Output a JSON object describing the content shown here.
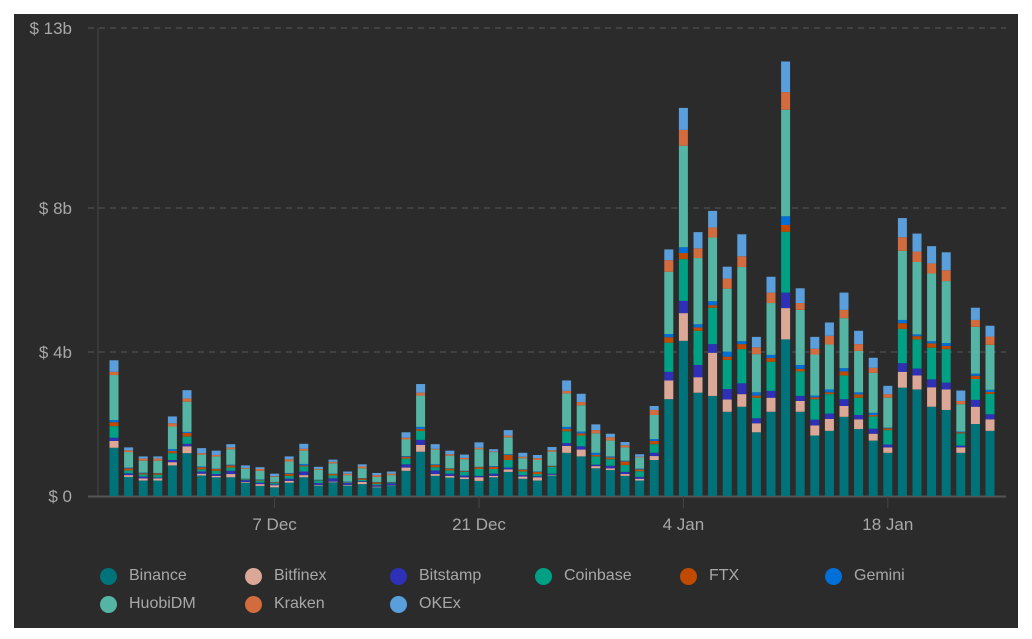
{
  "chart_data": {
    "type": "bar",
    "stacked": true,
    "title": "",
    "xlabel": "",
    "ylabel": "",
    "ylim": [
      0,
      13
    ],
    "grid": "horizontal dashed",
    "legend_position": "bottom",
    "background": "#2b2b2b",
    "y_ticks": [
      {
        "value": 0,
        "label": "$ 0"
      },
      {
        "value": 4,
        "label": "$ 4b"
      },
      {
        "value": 8,
        "label": "$ 8b"
      },
      {
        "value": 13,
        "label": "$ 13b"
      }
    ],
    "x_ticks": [
      {
        "date": "2020-12-07",
        "label": "7 Dec"
      },
      {
        "date": "2020-12-21",
        "label": "21 Dec"
      },
      {
        "date": "2021-01-04",
        "label": "4 Jan"
      },
      {
        "date": "2021-01-18",
        "label": "18 Jan"
      }
    ],
    "x": [
      "2020-11-26",
      "2020-11-27",
      "2020-11-28",
      "2020-11-29",
      "2020-11-30",
      "2020-12-01",
      "2020-12-02",
      "2020-12-03",
      "2020-12-04",
      "2020-12-05",
      "2020-12-06",
      "2020-12-07",
      "2020-12-08",
      "2020-12-09",
      "2020-12-10",
      "2020-12-11",
      "2020-12-12",
      "2020-12-13",
      "2020-12-14",
      "2020-12-15",
      "2020-12-16",
      "2020-12-17",
      "2020-12-18",
      "2020-12-19",
      "2020-12-20",
      "2020-12-21",
      "2020-12-22",
      "2020-12-23",
      "2020-12-24",
      "2020-12-25",
      "2020-12-26",
      "2020-12-27",
      "2020-12-28",
      "2020-12-29",
      "2020-12-30",
      "2020-12-31",
      "2021-01-01",
      "2021-01-02",
      "2021-01-03",
      "2021-01-04",
      "2021-01-05",
      "2021-01-06",
      "2021-01-07",
      "2021-01-08",
      "2021-01-09",
      "2021-01-10",
      "2021-01-11",
      "2021-01-12",
      "2021-01-13",
      "2021-01-14",
      "2021-01-15",
      "2021-01-16",
      "2021-01-17",
      "2021-01-18",
      "2021-01-19",
      "2021-01-20",
      "2021-01-21",
      "2021-01-22",
      "2021-01-23",
      "2021-01-24",
      "2021-01-25"
    ],
    "series": [
      {
        "name": "Binance",
        "color": "#00737a",
        "values": [
          1.34,
          0.53,
          0.43,
          0.43,
          0.85,
          1.19,
          0.57,
          0.52,
          0.52,
          0.37,
          0.28,
          0.24,
          0.37,
          0.52,
          0.29,
          0.38,
          0.29,
          0.33,
          0.24,
          0.29,
          0.7,
          1.23,
          0.56,
          0.51,
          0.47,
          0.42,
          0.52,
          0.67,
          0.48,
          0.43,
          0.57,
          1.2,
          1.1,
          0.77,
          0.72,
          0.56,
          0.43,
          1.0,
          2.69,
          4.31,
          2.87,
          2.78,
          2.34,
          2.48,
          1.77,
          2.34,
          4.35,
          2.34,
          1.68,
          1.81,
          2.2,
          1.86,
          1.54,
          1.2,
          3.01,
          2.96,
          2.48,
          2.39,
          1.2,
          2.0,
          1.81
        ]
      },
      {
        "name": "Bitfinex",
        "color": "#dba898",
        "values": [
          0.19,
          0.05,
          0.06,
          0.06,
          0.09,
          0.19,
          0.05,
          0.04,
          0.09,
          0.02,
          0.05,
          0.06,
          0.05,
          0.06,
          0.02,
          0.02,
          0.02,
          0.06,
          0.02,
          0.01,
          0.09,
          0.19,
          0.05,
          0.05,
          0.05,
          0.1,
          0.04,
          0.07,
          0.06,
          0.09,
          0.02,
          0.19,
          0.19,
          0.06,
          0.05,
          0.05,
          0.05,
          0.11,
          0.52,
          0.77,
          0.43,
          1.2,
          0.34,
          0.35,
          0.25,
          0.39,
          0.87,
          0.3,
          0.28,
          0.33,
          0.3,
          0.27,
          0.19,
          0.15,
          0.44,
          0.39,
          0.54,
          0.57,
          0.15,
          0.48,
          0.32
        ]
      },
      {
        "name": "Bitstamp",
        "color": "#2e31b8",
        "values": [
          0.09,
          0.05,
          0.05,
          0.02,
          0.06,
          0.07,
          0.06,
          0.05,
          0.09,
          0.05,
          0.04,
          0.02,
          0.06,
          0.1,
          0.05,
          0.09,
          0.05,
          0.02,
          0.04,
          0.05,
          0.09,
          0.14,
          0.1,
          0.06,
          0.05,
          0.04,
          0.06,
          0.05,
          0.04,
          0.03,
          0.03,
          0.08,
          0.09,
          0.04,
          0.07,
          0.06,
          0.05,
          0.09,
          0.24,
          0.34,
          0.34,
          0.24,
          0.29,
          0.3,
          0.14,
          0.19,
          0.43,
          0.14,
          0.16,
          0.15,
          0.19,
          0.12,
          0.14,
          0.08,
          0.24,
          0.19,
          0.22,
          0.19,
          0.05,
          0.19,
          0.14
        ]
      },
      {
        "name": "Coinbase",
        "color": "#00a085",
        "values": [
          0.32,
          0.08,
          0.06,
          0.08,
          0.19,
          0.2,
          0.06,
          0.09,
          0.09,
          0.02,
          0.06,
          0.04,
          0.08,
          0.14,
          0.07,
          0.08,
          0.02,
          0.04,
          0.04,
          0.02,
          0.16,
          0.25,
          0.09,
          0.09,
          0.1,
          0.19,
          0.13,
          0.21,
          0.1,
          0.06,
          0.19,
          0.33,
          0.3,
          0.23,
          0.18,
          0.19,
          0.16,
          0.24,
          0.81,
          1.16,
          0.95,
          1.01,
          0.81,
          0.95,
          0.57,
          0.81,
          1.69,
          0.68,
          0.57,
          0.54,
          0.66,
          0.48,
          0.34,
          0.4,
          0.95,
          0.81,
          0.88,
          0.93,
          0.34,
          0.58,
          0.57
        ]
      },
      {
        "name": "FTX",
        "color": "#c04a00",
        "values": [
          0.11,
          0.06,
          0.03,
          0.04,
          0.06,
          0.1,
          0.06,
          0.05,
          0.06,
          0.01,
          0.02,
          0.02,
          0.06,
          0.03,
          0.01,
          0.04,
          0.01,
          0.04,
          0.04,
          0.01,
          0.05,
          0.05,
          0.06,
          0.05,
          0.02,
          0.05,
          0.06,
          0.14,
          0.05,
          0.06,
          0.02,
          0.06,
          0.06,
          0.04,
          0.05,
          0.1,
          0.05,
          0.09,
          0.15,
          0.17,
          0.09,
          0.07,
          0.09,
          0.14,
          0.06,
          0.1,
          0.19,
          0.07,
          0.05,
          0.05,
          0.11,
          0.09,
          0.04,
          0.05,
          0.16,
          0.09,
          0.12,
          0.09,
          0.03,
          0.09,
          0.05
        ]
      },
      {
        "name": "Gemini",
        "color": "#0070d8",
        "values": [
          0.06,
          0.02,
          0.02,
          0.01,
          0.05,
          0.03,
          0.02,
          0.01,
          0.02,
          0.01,
          0.01,
          0.01,
          0.02,
          0.04,
          0.01,
          0.01,
          0.01,
          0.01,
          0.01,
          0.01,
          0.02,
          0.06,
          0.02,
          0.01,
          0.01,
          0.01,
          0.02,
          0.02,
          0.01,
          0.01,
          0.01,
          0.06,
          0.05,
          0.06,
          0.03,
          0.02,
          0.02,
          0.05,
          0.09,
          0.16,
          0.09,
          0.11,
          0.14,
          0.08,
          0.09,
          0.09,
          0.24,
          0.11,
          0.05,
          0.08,
          0.09,
          0.06,
          0.06,
          0.02,
          0.09,
          0.05,
          0.06,
          0.08,
          0.02,
          0.06,
          0.06
        ]
      },
      {
        "name": "HuobiDM",
        "color": "#55b5a5",
        "values": [
          1.25,
          0.43,
          0.33,
          0.34,
          0.63,
          0.84,
          0.33,
          0.34,
          0.43,
          0.28,
          0.24,
          0.14,
          0.32,
          0.37,
          0.28,
          0.29,
          0.18,
          0.27,
          0.14,
          0.19,
          0.46,
          0.87,
          0.41,
          0.35,
          0.32,
          0.49,
          0.39,
          0.47,
          0.31,
          0.32,
          0.39,
          0.93,
          0.73,
          0.54,
          0.44,
          0.37,
          0.31,
          0.67,
          1.73,
          2.82,
          1.84,
          1.77,
          1.75,
          2.06,
          1.06,
          1.44,
          2.96,
          1.53,
          1.14,
          1.25,
          1.39,
          1.15,
          1.11,
          0.83,
          1.92,
          2.01,
          1.88,
          1.72,
          0.76,
          1.3,
          1.25
        ]
      },
      {
        "name": "Kraken",
        "color": "#d26b3d",
        "values": [
          0.09,
          0.05,
          0.06,
          0.06,
          0.09,
          0.09,
          0.04,
          0.04,
          0.05,
          0.02,
          0.05,
          0.02,
          0.06,
          0.05,
          0.02,
          0.04,
          0.04,
          0.05,
          0.05,
          0.04,
          0.05,
          0.08,
          0.02,
          0.04,
          0.04,
          0.04,
          0.02,
          0.05,
          0.04,
          0.05,
          0.04,
          0.07,
          0.09,
          0.09,
          0.09,
          0.06,
          0.02,
          0.14,
          0.32,
          0.44,
          0.27,
          0.28,
          0.28,
          0.3,
          0.19,
          0.29,
          0.49,
          0.19,
          0.16,
          0.24,
          0.23,
          0.19,
          0.14,
          0.1,
          0.38,
          0.29,
          0.28,
          0.3,
          0.09,
          0.19,
          0.23
        ]
      },
      {
        "name": "OKEx",
        "color": "#5a9edb",
        "values": [
          0.32,
          0.08,
          0.06,
          0.06,
          0.19,
          0.23,
          0.14,
          0.12,
          0.09,
          0.07,
          0.05,
          0.07,
          0.08,
          0.14,
          0.06,
          0.06,
          0.06,
          0.06,
          0.06,
          0.06,
          0.15,
          0.24,
          0.13,
          0.1,
          0.09,
          0.15,
          0.06,
          0.15,
          0.11,
          0.09,
          0.09,
          0.29,
          0.23,
          0.16,
          0.1,
          0.09,
          0.07,
          0.11,
          0.3,
          0.61,
          0.45,
          0.46,
          0.33,
          0.61,
          0.29,
          0.44,
          0.85,
          0.41,
          0.33,
          0.37,
          0.48,
          0.37,
          0.28,
          0.23,
          0.53,
          0.5,
          0.48,
          0.5,
          0.29,
          0.34,
          0.3
        ]
      }
    ]
  }
}
